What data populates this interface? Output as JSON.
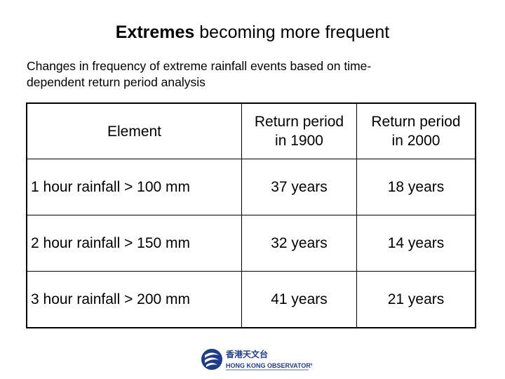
{
  "slide": {
    "title_strong": "Extremes",
    "title_rest": " becoming more frequent",
    "subtitle_line1": "Changes in frequency of extreme rainfall events based on time-",
    "subtitle_line2": "dependent return period analysis"
  },
  "table": {
    "headers": {
      "element": "Element",
      "col1_line1": "Return period",
      "col1_line2": "in 1900",
      "col2_line1": "Return period",
      "col2_line2": "in 2000"
    },
    "rows": [
      {
        "element": "1 hour rainfall > 100 mm",
        "y1900": "37 years",
        "y2000": "18 years"
      },
      {
        "element": "2 hour rainfall > 150 mm",
        "y1900": "32 years",
        "y2000": "14 years"
      },
      {
        "element": "3 hour rainfall > 200 mm",
        "y1900": "41 years",
        "y2000": "21 years"
      }
    ]
  },
  "logo": {
    "chinese": "香港天文台",
    "english": "HONG KONG OBSERVATORY",
    "icon": "hong-kong-observatory-emblem",
    "color": "#1f3c8c"
  }
}
